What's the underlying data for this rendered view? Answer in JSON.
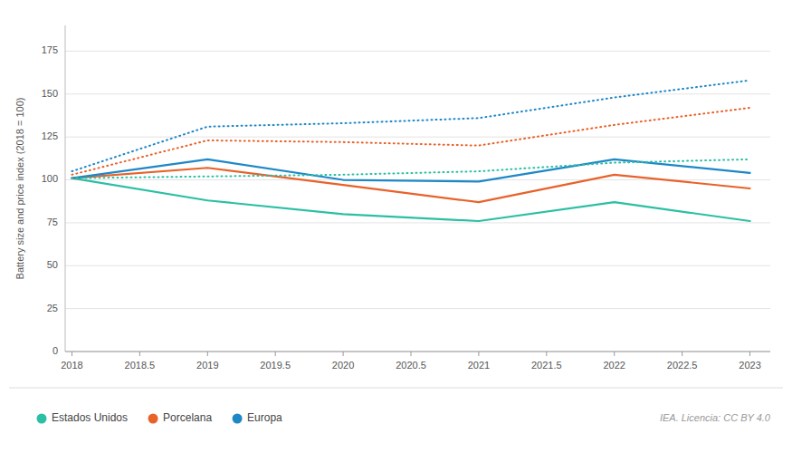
{
  "chart_data": {
    "type": "line",
    "y_label": "Battery size and price index (2018 = 100)",
    "x": [
      2018,
      2019,
      2020,
      2021,
      2022,
      2023
    ],
    "series": [
      {
        "name": "Estados Unidos",
        "color": "#2BBFA4",
        "line_style": "solid",
        "values": [
          101,
          88,
          80,
          76,
          87,
          76
        ]
      },
      {
        "name": "Porcelana",
        "color": "#E8622A",
        "line_style": "solid",
        "values": [
          101,
          107,
          97,
          87,
          103,
          95
        ]
      },
      {
        "name": "Europa",
        "color": "#1E88C7",
        "line_style": "solid",
        "values": [
          101,
          112,
          100,
          99,
          112,
          104
        ]
      },
      {
        "color": "#2BBFA4",
        "line_style": "dotted",
        "values": [
          101,
          102,
          103,
          105,
          110,
          112
        ]
      },
      {
        "color": "#E8622A",
        "line_style": "dotted",
        "values": [
          103,
          123,
          122,
          120,
          132,
          142
        ]
      },
      {
        "color": "#1E88C7",
        "line_style": "dotted",
        "values": [
          105,
          131,
          133,
          136,
          148,
          158
        ]
      }
    ],
    "xlim": [
      2017.95,
      2023.15
    ],
    "xticks": [
      2018,
      2018.5,
      2019,
      2019.5,
      2020,
      2020.5,
      2021,
      2021.5,
      2022,
      2022.5,
      2023
    ],
    "ylim": [
      0,
      190
    ],
    "yticks": [
      0,
      25,
      50,
      75,
      100,
      125,
      150,
      175
    ],
    "grid": true,
    "legend": "lower-left",
    "annotations": [
      "IEA. Licencia: CC BY 4.0"
    ]
  }
}
